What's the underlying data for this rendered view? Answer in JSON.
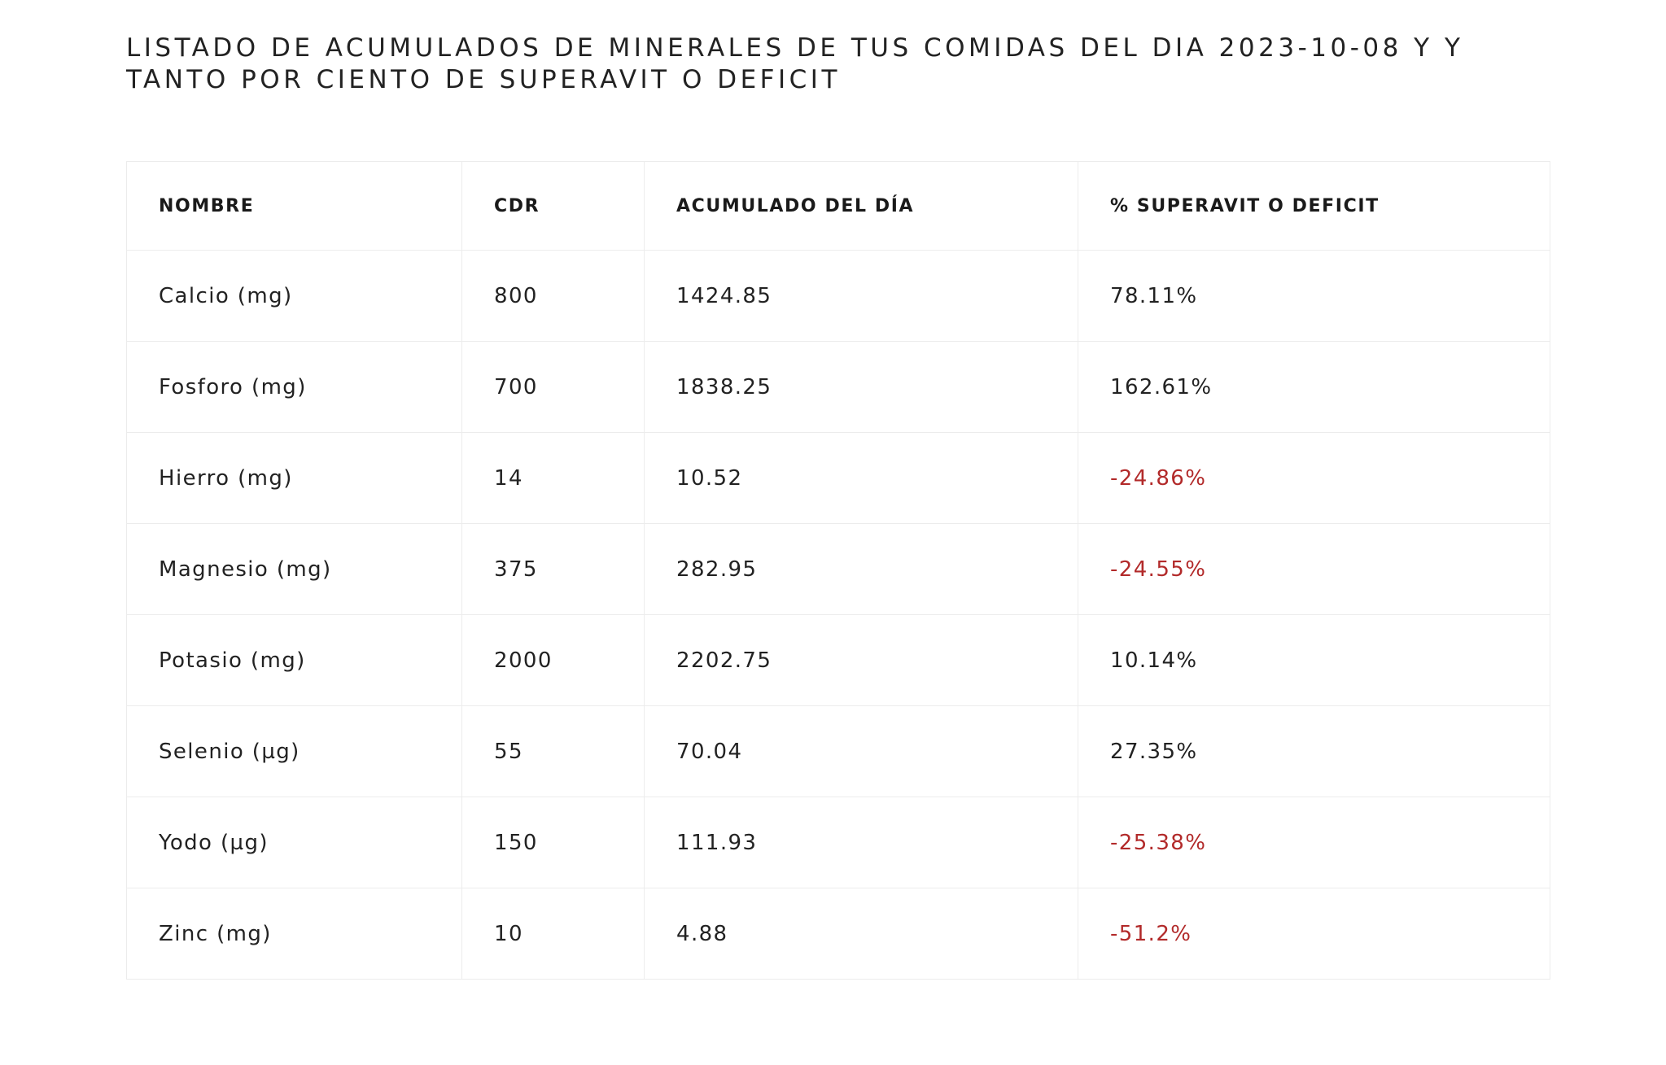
{
  "page": {
    "title": "LISTADO DE ACUMULADOS DE MINERALES DE TUS COMIDAS DEL DIA 2023-10-08 Y Y TANTO POR CIENTO DE SUPERAVIT O DEFICIT"
  },
  "colors": {
    "text": "#222222",
    "deficit": "#b22a2a",
    "border": "#ececec"
  },
  "table": {
    "headers": [
      "NOMBRE",
      "CDR",
      "ACUMULADO DEL DÍA",
      "% SUPERAVIT O DEFICIT"
    ],
    "rows": [
      {
        "nombre": "Calcio (mg)",
        "cdr": "800",
        "acumulado": "1424.85",
        "porcentaje": "78.11%",
        "deficit": false
      },
      {
        "nombre": "Fosforo (mg)",
        "cdr": "700",
        "acumulado": "1838.25",
        "porcentaje": "162.61%",
        "deficit": false
      },
      {
        "nombre": "Hierro (mg)",
        "cdr": "14",
        "acumulado": "10.52",
        "porcentaje": "-24.86%",
        "deficit": true
      },
      {
        "nombre": "Magnesio (mg)",
        "cdr": "375",
        "acumulado": "282.95",
        "porcentaje": "-24.55%",
        "deficit": true
      },
      {
        "nombre": "Potasio (mg)",
        "cdr": "2000",
        "acumulado": "2202.75",
        "porcentaje": "10.14%",
        "deficit": false
      },
      {
        "nombre": "Selenio (µg)",
        "cdr": "55",
        "acumulado": "70.04",
        "porcentaje": "27.35%",
        "deficit": false
      },
      {
        "nombre": "Yodo (µg)",
        "cdr": "150",
        "acumulado": "111.93",
        "porcentaje": "-25.38%",
        "deficit": true
      },
      {
        "nombre": "Zinc (mg)",
        "cdr": "10",
        "acumulado": "4.88",
        "porcentaje": "-51.2%",
        "deficit": true
      }
    ]
  }
}
